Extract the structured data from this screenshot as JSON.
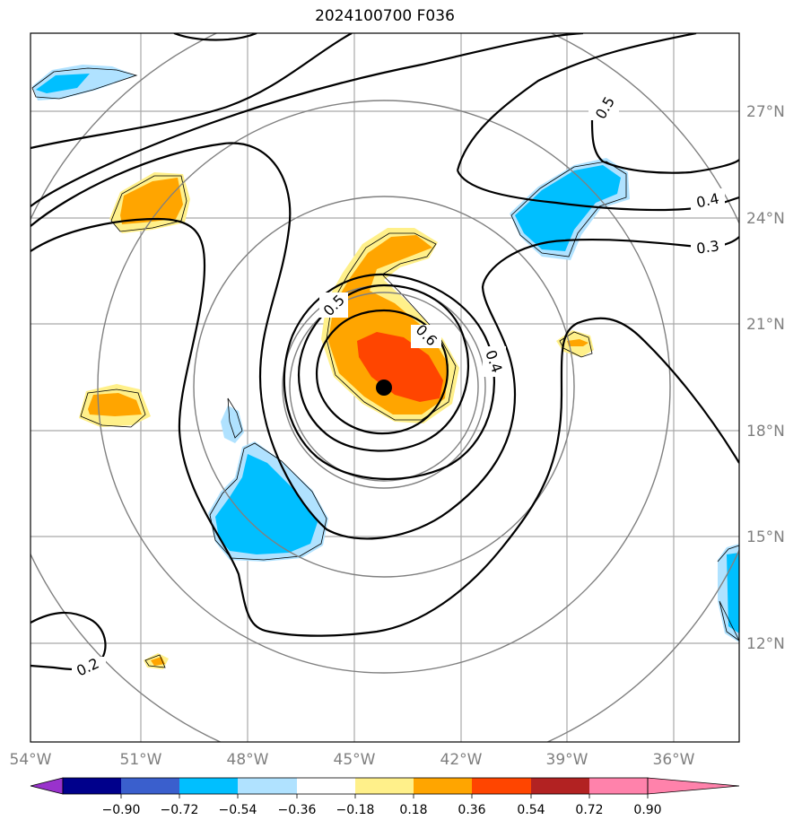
{
  "title": "2024100700 F036",
  "lon_labels": [
    "54°W",
    "51°W",
    "48°W",
    "45°W",
    "42°W",
    "39°W",
    "36°W"
  ],
  "lat_labels": [
    "27°N",
    "24°N",
    "21°N",
    "18°N",
    "15°N",
    "12°N"
  ],
  "colorbar": {
    "ticks": [
      "−0.90",
      "−0.72",
      "−0.54",
      "−0.36",
      "−0.18",
      "0.18",
      "0.36",
      "0.54",
      "0.72",
      "0.90"
    ],
    "colors": [
      "#9932cc",
      "#00008b",
      "#3a5fcd",
      "#00bfff",
      "#b0e2ff",
      "#ffffff",
      "#fff08a",
      "#ffa500",
      "#ff4500",
      "#b22222",
      "#ff82ab"
    ]
  },
  "contour_labels": [
    "0.5",
    "0.4",
    "0.3",
    "0.5",
    "0.6",
    "0.4",
    "0.2"
  ],
  "center_marker": "storm-center"
}
